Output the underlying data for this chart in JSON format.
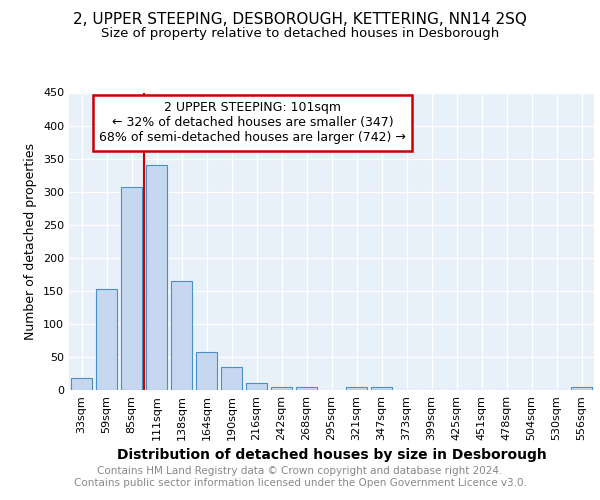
{
  "title": "2, UPPER STEEPING, DESBOROUGH, KETTERING, NN14 2SQ",
  "subtitle": "Size of property relative to detached houses in Desborough",
  "xlabel": "Distribution of detached houses by size in Desborough",
  "ylabel": "Number of detached properties",
  "footer_line1": "Contains HM Land Registry data © Crown copyright and database right 2024.",
  "footer_line2": "Contains public sector information licensed under the Open Government Licence v3.0.",
  "annotation_line1": "2 UPPER STEEPING: 101sqm",
  "annotation_line2": "← 32% of detached houses are smaller (347)",
  "annotation_line3": "68% of semi-detached houses are larger (742) →",
  "bar_labels": [
    "33sqm",
    "59sqm",
    "85sqm",
    "111sqm",
    "138sqm",
    "164sqm",
    "190sqm",
    "216sqm",
    "242sqm",
    "268sqm",
    "295sqm",
    "321sqm",
    "347sqm",
    "373sqm",
    "399sqm",
    "425sqm",
    "451sqm",
    "478sqm",
    "504sqm",
    "530sqm",
    "556sqm"
  ],
  "bar_values": [
    18,
    153,
    307,
    340,
    165,
    57,
    35,
    10,
    5,
    5,
    0,
    5,
    5,
    0,
    0,
    0,
    0,
    0,
    0,
    0,
    5
  ],
  "bar_color": "#c5d8f0",
  "bar_edge_color": "#4a90c4",
  "red_line_x": 2.5,
  "ylim": [
    0,
    450
  ],
  "yticks": [
    0,
    50,
    100,
    150,
    200,
    250,
    300,
    350,
    400,
    450
  ],
  "bg_color": "#e8f0fa",
  "grid_color": "#ffffff",
  "annotation_box_color": "#ffffff",
  "annotation_box_edge": "#cc0000",
  "title_fontsize": 11,
  "subtitle_fontsize": 9.5,
  "xlabel_fontsize": 10,
  "ylabel_fontsize": 9,
  "tick_fontsize": 8,
  "footer_fontsize": 7.5,
  "annotation_fontsize": 9
}
